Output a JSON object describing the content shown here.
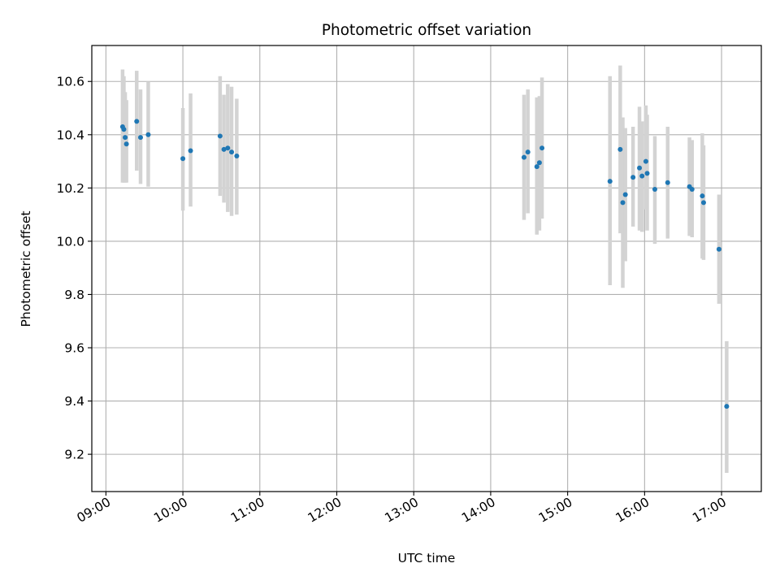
{
  "chart_data": {
    "type": "scatter",
    "title": "Photometric offset variation",
    "xlabel": "UTC time",
    "ylabel": "Photometric offset",
    "xlim": [
      "08:49",
      "17:31"
    ],
    "ylim": [
      9.06,
      10.735
    ],
    "x_ticks": [
      "09:00",
      "10:00",
      "11:00",
      "12:00",
      "13:00",
      "14:00",
      "15:00",
      "16:00",
      "17:00"
    ],
    "y_ticks": [
      "9.2",
      "9.4",
      "9.6",
      "9.8",
      "10.0",
      "10.2",
      "10.4",
      "10.6"
    ],
    "grid": true,
    "colors": {
      "point": "#1f77b4",
      "errorbar": "#d3d3d3",
      "grid": "#b0b0b0"
    },
    "points": [
      {
        "x": "09:13",
        "y": 10.43,
        "yerr_low": 10.22,
        "yerr_high": 10.645
      },
      {
        "x": "09:14",
        "y": 10.42,
        "yerr_low": 10.22,
        "yerr_high": 10.62
      },
      {
        "x": "09:15",
        "y": 10.39,
        "yerr_low": 10.22,
        "yerr_high": 10.56
      },
      {
        "x": "09:16",
        "y": 10.365,
        "yerr_low": 10.22,
        "yerr_high": 10.53
      },
      {
        "x": "09:24",
        "y": 10.45,
        "yerr_low": 10.265,
        "yerr_high": 10.64
      },
      {
        "x": "09:27",
        "y": 10.39,
        "yerr_low": 10.215,
        "yerr_high": 10.57
      },
      {
        "x": "09:33",
        "y": 10.4,
        "yerr_low": 10.205,
        "yerr_high": 10.6
      },
      {
        "x": "10:00",
        "y": 10.31,
        "yerr_low": 10.115,
        "yerr_high": 10.5
      },
      {
        "x": "10:06",
        "y": 10.34,
        "yerr_low": 10.13,
        "yerr_high": 10.555
      },
      {
        "x": "10:29",
        "y": 10.395,
        "yerr_low": 10.17,
        "yerr_high": 10.62
      },
      {
        "x": "10:32",
        "y": 10.345,
        "yerr_low": 10.145,
        "yerr_high": 10.55
      },
      {
        "x": "10:35",
        "y": 10.35,
        "yerr_low": 10.11,
        "yerr_high": 10.59
      },
      {
        "x": "10:38",
        "y": 10.335,
        "yerr_low": 10.095,
        "yerr_high": 10.58
      },
      {
        "x": "10:42",
        "y": 10.32,
        "yerr_low": 10.1,
        "yerr_high": 10.535
      },
      {
        "x": "14:26",
        "y": 10.315,
        "yerr_low": 10.08,
        "yerr_high": 10.55
      },
      {
        "x": "14:29",
        "y": 10.335,
        "yerr_low": 10.105,
        "yerr_high": 10.57
      },
      {
        "x": "14:36",
        "y": 10.28,
        "yerr_low": 10.025,
        "yerr_high": 10.54
      },
      {
        "x": "14:38",
        "y": 10.295,
        "yerr_low": 10.04,
        "yerr_high": 10.545
      },
      {
        "x": "14:40",
        "y": 10.35,
        "yerr_low": 10.085,
        "yerr_high": 10.615
      },
      {
        "x": "15:33",
        "y": 10.225,
        "yerr_low": 9.835,
        "yerr_high": 10.62
      },
      {
        "x": "15:41",
        "y": 10.345,
        "yerr_low": 10.03,
        "yerr_high": 10.66
      },
      {
        "x": "15:43",
        "y": 10.145,
        "yerr_low": 9.825,
        "yerr_high": 10.465
      },
      {
        "x": "15:45",
        "y": 10.175,
        "yerr_low": 9.925,
        "yerr_high": 10.425
      },
      {
        "x": "15:51",
        "y": 10.24,
        "yerr_low": 10.055,
        "yerr_high": 10.43
      },
      {
        "x": "15:56",
        "y": 10.275,
        "yerr_low": 10.04,
        "yerr_high": 10.505
      },
      {
        "x": "15:58",
        "y": 10.245,
        "yerr_low": 10.035,
        "yerr_high": 10.45
      },
      {
        "x": "16:01",
        "y": 10.3,
        "yerr_low": 10.12,
        "yerr_high": 10.51
      },
      {
        "x": "16:02",
        "y": 10.255,
        "yerr_low": 10.04,
        "yerr_high": 10.475
      },
      {
        "x": "16:08",
        "y": 10.195,
        "yerr_low": 9.99,
        "yerr_high": 10.395
      },
      {
        "x": "16:18",
        "y": 10.22,
        "yerr_low": 10.01,
        "yerr_high": 10.43
      },
      {
        "x": "16:35",
        "y": 10.205,
        "yerr_low": 10.02,
        "yerr_high": 10.39
      },
      {
        "x": "16:37",
        "y": 10.195,
        "yerr_low": 10.015,
        "yerr_high": 10.38
      },
      {
        "x": "16:45",
        "y": 10.17,
        "yerr_low": 9.935,
        "yerr_high": 10.405
      },
      {
        "x": "16:46",
        "y": 10.145,
        "yerr_low": 9.93,
        "yerr_high": 10.36
      },
      {
        "x": "16:58",
        "y": 9.97,
        "yerr_low": 9.765,
        "yerr_high": 10.175
      },
      {
        "x": "17:04",
        "y": 9.38,
        "yerr_low": 9.13,
        "yerr_high": 9.625
      }
    ]
  }
}
